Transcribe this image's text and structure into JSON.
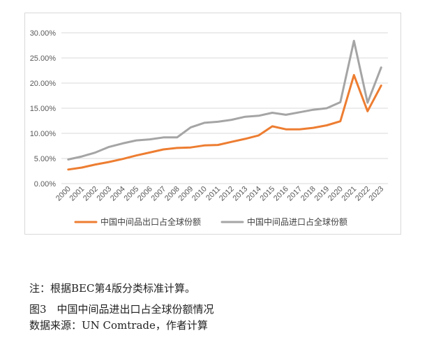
{
  "chart_data": {
    "type": "line",
    "title": "",
    "xlabel": "",
    "ylabel": "",
    "x": [
      "2000",
      "2001",
      "2002",
      "2003",
      "2004",
      "2005",
      "2006",
      "2007",
      "2008",
      "2009",
      "2010",
      "2011",
      "2012",
      "2013",
      "2014",
      "2015",
      "2016",
      "2017",
      "2018",
      "2019",
      "2020",
      "2021",
      "2022",
      "2023"
    ],
    "y_ticks": [
      "0.00%",
      "5.00%",
      "10.00%",
      "15.00%",
      "20.00%",
      "25.00%",
      "30.00%"
    ],
    "ylim": [
      0,
      30
    ],
    "grid": true,
    "legend_position": "bottom",
    "series": [
      {
        "name": "中国中间品出口占全球份额",
        "color": "#ED7D31",
        "values": [
          2.8,
          3.2,
          3.8,
          4.3,
          4.9,
          5.6,
          6.2,
          6.8,
          7.1,
          7.2,
          7.6,
          7.7,
          8.3,
          8.9,
          9.6,
          11.4,
          10.8,
          10.8,
          11.1,
          11.6,
          12.4,
          21.6,
          14.4,
          19.5
        ]
      },
      {
        "name": "中国中间品进口占全球份额",
        "color": "#A5A5A5",
        "values": [
          4.8,
          5.4,
          6.2,
          7.3,
          8.0,
          8.6,
          8.8,
          9.2,
          9.2,
          11.2,
          12.1,
          12.3,
          12.7,
          13.3,
          13.5,
          14.1,
          13.7,
          14.2,
          14.7,
          15.0,
          16.2,
          28.4,
          16.1,
          23.1
        ]
      }
    ]
  },
  "notes": {
    "note_line": "注：根据BEC第4版分类标准计算。",
    "figure_caption": "图3　中国中间品进出口占全球份额情况",
    "source_line": "数据来源：UN Comtrade，作者计算"
  }
}
